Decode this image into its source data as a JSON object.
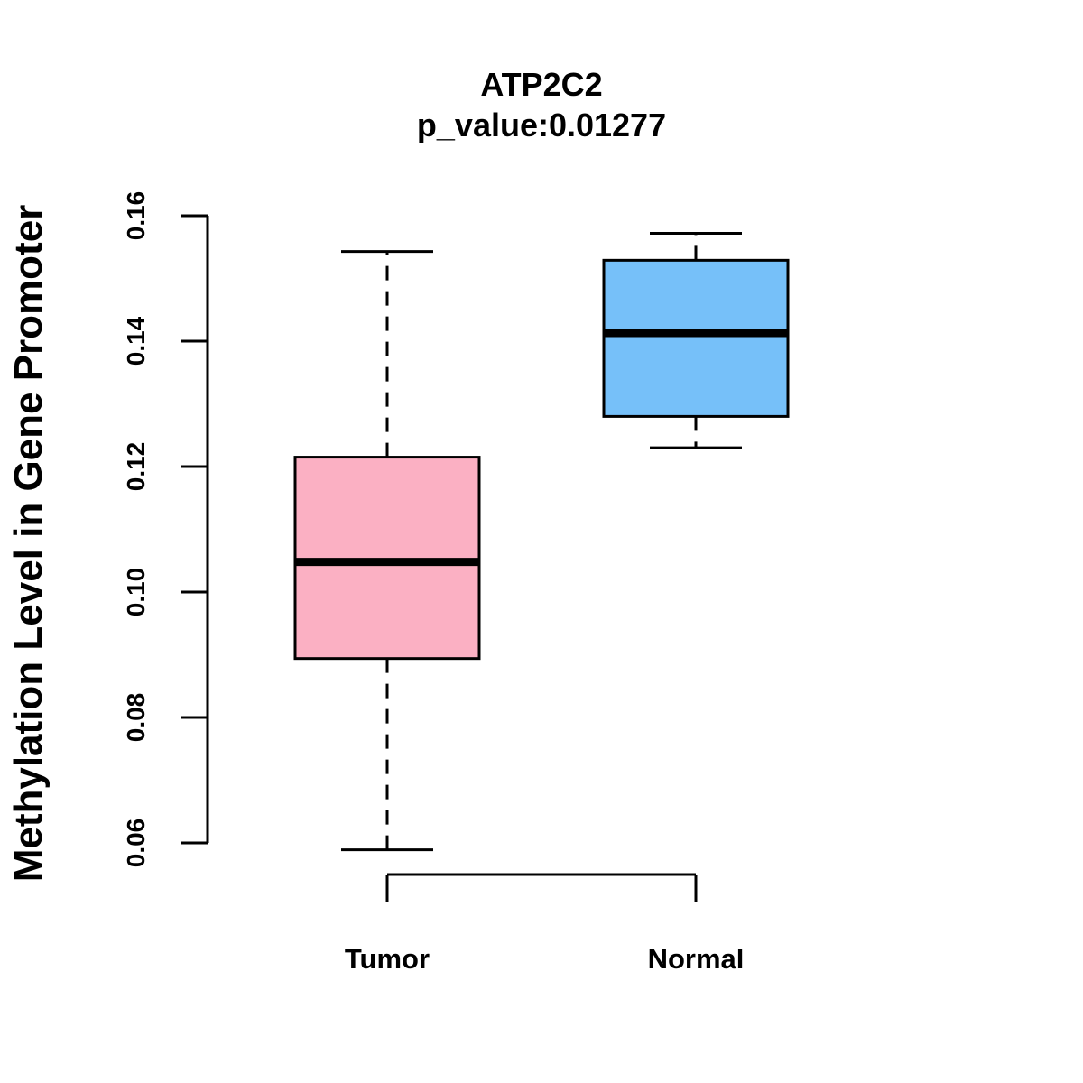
{
  "chart_data": {
    "type": "box",
    "title": "ATP2C2",
    "subtitle": "p_value:0.01277",
    "xlabel": "",
    "ylabel": "Methylation Level in Gene Promoter",
    "ylim": [
      0.06,
      0.16
    ],
    "yticks": [
      0.06,
      0.08,
      0.1,
      0.12,
      0.14,
      0.16
    ],
    "ytick_labels": [
      "0.06",
      "0.08",
      "0.10",
      "0.12",
      "0.14",
      "0.16"
    ],
    "categories": [
      "Tumor",
      "Normal"
    ],
    "boxes": [
      {
        "name": "Tumor",
        "color": "#FBB0C3",
        "min": 0.0589,
        "q1": 0.0894,
        "median": 0.1048,
        "q3": 0.1215,
        "max": 0.1543
      },
      {
        "name": "Normal",
        "color": "#76C0F9",
        "min": 0.123,
        "q1": 0.128,
        "median": 0.1413,
        "q3": 0.1529,
        "max": 0.1572
      }
    ],
    "grid": false,
    "legend": "none"
  }
}
